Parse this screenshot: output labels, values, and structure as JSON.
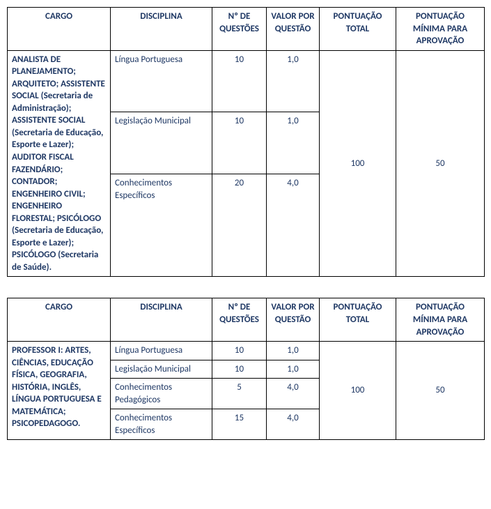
{
  "headers": {
    "cargo": "CARGO",
    "disciplina": "DISCIPLINA",
    "questoes": "Nº DE QUESTÕES",
    "valor": "VALOR POR QUESTÃO",
    "total": "PONTUAÇÃO TOTAL",
    "minima": "PONTUAÇÃO MÍNIMA PARA APROVAÇÃO"
  },
  "table1": {
    "cargo": "ANALISTA DE PLANEJAMENTO; ARQUITETO; ASSISTENTE SOCIAL (Secretaria de Administração); ASSISTENTE SOCIAL (Secretaria de Educação, Esporte e Lazer); AUDITOR FISCAL FAZENDÁRIO; CONTADOR; ENGENHEIRO CIVIL; ENGENHEIRO FLORESTAL; PSICÓLOGO (Secretaria de Educação, Esporte e Lazer); PSICÓLOGO (Secretaria de Saúde).",
    "total": "100",
    "minima": "50",
    "rows": [
      {
        "disciplina": "Língua Portuguesa",
        "questoes": "10",
        "valor": "1,0"
      },
      {
        "disciplina": "Legislação Municipal",
        "questoes": "10",
        "valor": "1,0"
      },
      {
        "disciplina": "Conhecimentos Específicos",
        "questoes": "20",
        "valor": "4,0"
      }
    ]
  },
  "table2": {
    "cargo": "PROFESSOR I: ARTES, CIÊNCIAS, EDUCAÇÃO FÍSICA, GEOGRAFIA, HISTÓRIA, INGLÊS, LÍNGUA PORTUGUESA E MATEMÁTICA; PSICOPEDAGOGO.",
    "total": "100",
    "minima": "50",
    "rows": [
      {
        "disciplina": "Língua Portuguesa",
        "questoes": "10",
        "valor": "1,0"
      },
      {
        "disciplina": "Legislação Municipal",
        "questoes": "10",
        "valor": "1,0"
      },
      {
        "disciplina": "Conhecimentos Pedagógicos",
        "questoes": "5",
        "valor": "4,0"
      },
      {
        "disciplina": "Conhecimentos Específicos",
        "questoes": "15",
        "valor": "4,0"
      }
    ]
  }
}
